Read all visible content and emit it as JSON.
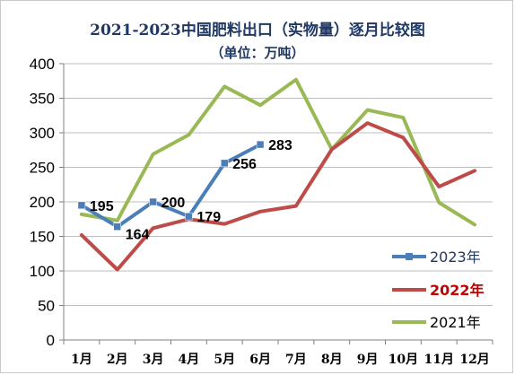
{
  "chart_data": {
    "type": "line",
    "title": "2021-2023中国肥料出口（实物量）逐月比较图",
    "subtitle": "（单位：万吨）",
    "categories": [
      "1月",
      "2月",
      "3月",
      "4月",
      "5月",
      "6月",
      "7月",
      "8月",
      "9月",
      "10月",
      "11月",
      "12月"
    ],
    "ylim": [
      0,
      400
    ],
    "yticks": [
      "0",
      "50",
      "100",
      "150",
      "200",
      "250",
      "300",
      "350",
      "400"
    ],
    "grid": true,
    "legend_position": "right",
    "series": [
      {
        "name": "2023年",
        "color": "#4a7ebb",
        "markers": true,
        "values": [
          195,
          164,
          200,
          179,
          256,
          283,
          null,
          null,
          null,
          null,
          null,
          null
        ],
        "data_labels": [
          "195",
          "164",
          "200",
          "179",
          "256",
          "283"
        ]
      },
      {
        "name": "2022年",
        "color": "#be4b48",
        "markers": false,
        "values": [
          152,
          102,
          162,
          175,
          168,
          186,
          194,
          276,
          314,
          293,
          222,
          245
        ]
      },
      {
        "name": "2021年",
        "color": "#98b954",
        "markers": false,
        "values": [
          182,
          173,
          269,
          297,
          367,
          340,
          377,
          276,
          333,
          322,
          199,
          167
        ]
      }
    ],
    "legend": [
      "2023年",
      "2022年",
      "2021年"
    ]
  }
}
